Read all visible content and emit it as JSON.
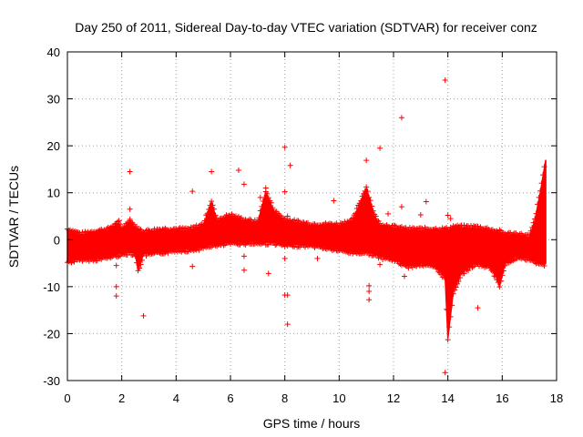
{
  "chart_data": {
    "type": "scatter",
    "title": "Day 250 of 2011, Sidereal Day-to-day VTEC variation (SDTVAR) for receiver conz",
    "xlabel": "GPS time / hours",
    "ylabel": "SDTVAR / TECUs",
    "xlim": [
      0,
      18
    ],
    "ylim": [
      -30,
      40
    ],
    "xticks": [
      "0",
      "2",
      "4",
      "6",
      "8",
      "10",
      "12",
      "14",
      "16",
      "18"
    ],
    "yticks": [
      "-30",
      "-20",
      "-10",
      "0",
      "10",
      "20",
      "30",
      "40"
    ],
    "xtick_values": [
      0,
      2,
      4,
      6,
      8,
      10,
      12,
      14,
      16,
      18
    ],
    "ytick_values": [
      -30,
      -20,
      -10,
      0,
      10,
      20,
      30,
      40
    ],
    "grid": true,
    "marker": "plus",
    "color": "#ff0000",
    "band": {
      "description": "dense noise band envelope (x hours, lower, upper)",
      "envelope": [
        [
          0.0,
          -4.5,
          2.0
        ],
        [
          0.5,
          -4.0,
          1.0
        ],
        [
          1.0,
          -4.0,
          1.5
        ],
        [
          1.5,
          -3.5,
          2.0
        ],
        [
          1.9,
          -3.0,
          3.5
        ],
        [
          2.0,
          -3.0,
          2.0
        ],
        [
          2.3,
          -2.5,
          4.0
        ],
        [
          2.5,
          -3.0,
          2.5
        ],
        [
          2.6,
          -6.5,
          2.0
        ],
        [
          2.8,
          -3.0,
          1.5
        ],
        [
          3.5,
          -2.5,
          2.0
        ],
        [
          4.0,
          -2.0,
          2.0
        ],
        [
          4.5,
          -2.0,
          2.0
        ],
        [
          5.0,
          -1.5,
          3.0
        ],
        [
          5.3,
          -1.0,
          8.0
        ],
        [
          5.5,
          -1.0,
          4.0
        ],
        [
          6.0,
          -0.5,
          5.0
        ],
        [
          6.5,
          -0.5,
          4.0
        ],
        [
          7.0,
          -0.5,
          3.5
        ],
        [
          7.3,
          -0.5,
          10.0
        ],
        [
          7.6,
          -0.5,
          6.0
        ],
        [
          8.0,
          -1.0,
          4.0
        ],
        [
          8.5,
          -1.0,
          3.5
        ],
        [
          9.0,
          -1.0,
          3.0
        ],
        [
          9.5,
          -1.5,
          3.0
        ],
        [
          10.0,
          -2.0,
          3.0
        ],
        [
          10.5,
          -2.5,
          4.0
        ],
        [
          11.0,
          -2.5,
          11.0
        ],
        [
          11.3,
          -3.0,
          5.0
        ],
        [
          11.5,
          -3.5,
          3.0
        ],
        [
          12.0,
          -4.0,
          2.5
        ],
        [
          12.5,
          -5.5,
          2.0
        ],
        [
          13.0,
          -5.0,
          2.0
        ],
        [
          13.5,
          -5.5,
          2.0
        ],
        [
          13.9,
          -8.0,
          2.0
        ],
        [
          14.0,
          -21.0,
          2.0
        ],
        [
          14.2,
          -11.0,
          2.5
        ],
        [
          14.5,
          -7.0,
          2.5
        ],
        [
          15.0,
          -5.0,
          2.5
        ],
        [
          15.5,
          -5.5,
          2.0
        ],
        [
          15.8,
          -8.0,
          1.5
        ],
        [
          15.9,
          -10.0,
          1.5
        ],
        [
          16.1,
          -5.0,
          1.0
        ],
        [
          16.5,
          -3.5,
          1.0
        ],
        [
          17.0,
          -4.0,
          0.5
        ],
        [
          17.2,
          -4.5,
          4.0
        ],
        [
          17.4,
          -5.0,
          10.0
        ],
        [
          17.6,
          -5.0,
          17.0
        ]
      ]
    },
    "outliers": [
      [
        1.8,
        -5.5
      ],
      [
        1.8,
        -10
      ],
      [
        1.8,
        -12
      ],
      [
        1.8,
        3.5
      ],
      [
        2.3,
        14.5
      ],
      [
        2.3,
        6.5
      ],
      [
        2.3,
        4
      ],
      [
        2.8,
        -16.2
      ],
      [
        4.6,
        10.3
      ],
      [
        4.6,
        -5.7
      ],
      [
        5.3,
        14.5
      ],
      [
        6.3,
        14.8
      ],
      [
        6.5,
        11.8
      ],
      [
        6.5,
        -6.5
      ],
      [
        6.5,
        -3.5
      ],
      [
        7.1,
        9
      ],
      [
        7.3,
        11
      ],
      [
        7.4,
        -7.2
      ],
      [
        8.0,
        19.7
      ],
      [
        8.0,
        10.2
      ],
      [
        8.0,
        -11.8
      ],
      [
        8.1,
        -11.8
      ],
      [
        8.1,
        -18
      ],
      [
        8.1,
        5
      ],
      [
        8.2,
        15.8
      ],
      [
        8.0,
        -4
      ],
      [
        9.2,
        -4
      ],
      [
        9.8,
        8.3
      ],
      [
        11.0,
        16.9
      ],
      [
        11.1,
        -9.8
      ],
      [
        11.1,
        -11
      ],
      [
        11.1,
        -12.8
      ],
      [
        11.5,
        19.5
      ],
      [
        11.5,
        -5.3
      ],
      [
        11.8,
        5.5
      ],
      [
        12.3,
        26
      ],
      [
        12.3,
        7
      ],
      [
        12.4,
        -7.8
      ],
      [
        13.0,
        5.3
      ],
      [
        13.2,
        8.1
      ],
      [
        13.9,
        34
      ],
      [
        13.9,
        -28.3
      ],
      [
        14.0,
        5.2
      ],
      [
        14.0,
        -15
      ],
      [
        14.1,
        4.5
      ],
      [
        14.1,
        -1
      ],
      [
        15.1,
        -14.5
      ],
      [
        16.0,
        0.8
      ]
    ]
  }
}
